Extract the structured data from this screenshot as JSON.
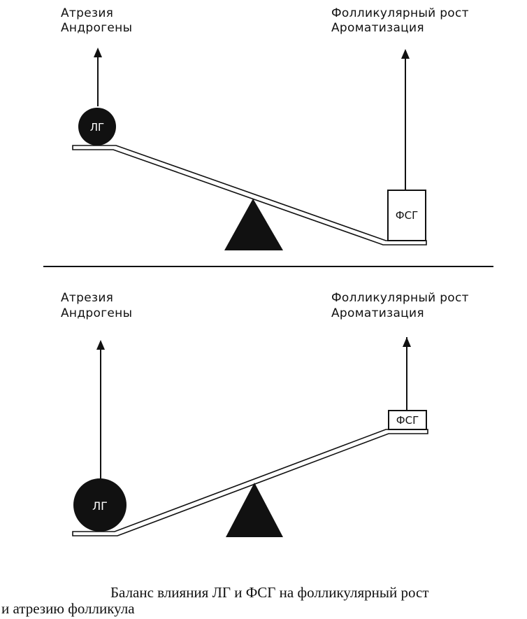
{
  "top_panel": {
    "left_label_1": "Атрезия",
    "left_label_2": "Андрогены",
    "right_label_1": "Фолликулярный рост",
    "right_label_2": "Ароматизация",
    "weight_left": "ЛГ",
    "weight_right": "ФСГ"
  },
  "bottom_panel": {
    "left_label_1": "Атрезия",
    "left_label_2": "Андрогены",
    "right_label_1": "Фолликулярный рост",
    "right_label_2": "Ароматизация",
    "weight_left": "ЛГ",
    "weight_right": "ФСГ"
  },
  "caption": {
    "line1": "Баланс влияния ЛГ и ФСГ на фолликулярный рост",
    "line2": "и атрезию фолликула"
  }
}
